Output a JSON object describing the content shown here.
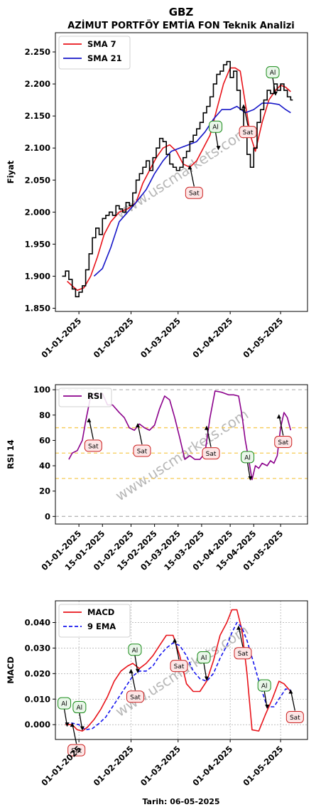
{
  "header": {
    "ticker": "GBZ",
    "subtitle": "AZİMUT PORTFÖY EMTİA FON Teknik Analizi",
    "watermark": "www.uscmarkets.com",
    "footer_date": "Tarih: 06-05-2025"
  },
  "colors": {
    "sma7": "#e8131a",
    "sma21": "#1616c8",
    "price": "#000000",
    "rsi": "#8b008b",
    "macd": "#e8131a",
    "signal": "#1616ee",
    "buy_fill": "#e9f6e9",
    "buy_stroke": "#1a8c1a",
    "sell_fill": "#fde6e6",
    "sell_stroke": "#cc2222",
    "level_band": "#f5c542",
    "level_extreme": "#b0b0b0",
    "watermark": "#a0a0a0"
  },
  "chart_data": [
    {
      "id": "price",
      "type": "line",
      "title": "AZİMUT PORTFÖY EMTİA FON Teknik Analizi",
      "ylabel": "Fiyat",
      "xlabel": "",
      "ylim": [
        1.845,
        2.28
      ],
      "xlim": [
        "2024-12-18",
        "2025-05-17"
      ],
      "yticks": [
        1.85,
        1.9,
        1.95,
        2.0,
        2.05,
        2.1,
        2.15,
        2.2,
        2.25
      ],
      "ytick_labels": [
        "1.850",
        "1.900",
        "1.950",
        "2.000",
        "2.050",
        "2.100",
        "2.150",
        "2.200",
        "2.250"
      ],
      "xticks": [
        "2025-01-01",
        "2025-02-01",
        "2025-03-01",
        "2025-04-01",
        "2025-05-01"
      ],
      "xtick_labels": [
        "01-01-2025",
        "01-02-2025",
        "01-03-2025",
        "01-04-2025",
        "01-05-2025"
      ],
      "legend": "top-left",
      "grid": false,
      "series": [
        {
          "name": "SMA 7",
          "key": "sma7",
          "x": [
            "2024-12-25",
            "2024-12-28",
            "2024-12-31",
            "2025-01-04",
            "2025-01-08",
            "2025-01-12",
            "2025-01-16",
            "2025-01-20",
            "2025-01-25",
            "2025-01-30",
            "2025-02-04",
            "2025-02-08",
            "2025-02-12",
            "2025-02-16",
            "2025-02-20",
            "2025-02-24",
            "2025-02-28",
            "2025-03-04",
            "2025-03-08",
            "2025-03-12",
            "2025-03-16",
            "2025-03-20",
            "2025-03-24",
            "2025-03-28",
            "2025-04-01",
            "2025-04-04",
            "2025-04-07",
            "2025-04-10",
            "2025-04-13",
            "2025-04-16",
            "2025-04-20",
            "2025-04-24",
            "2025-04-28",
            "2025-05-01",
            "2025-05-04",
            "2025-05-07"
          ],
          "values": [
            1.892,
            1.885,
            1.878,
            1.882,
            1.9,
            1.93,
            1.965,
            1.985,
            2.0,
            2.005,
            2.015,
            2.045,
            2.065,
            2.085,
            2.1,
            2.105,
            2.095,
            2.075,
            2.07,
            2.08,
            2.1,
            2.12,
            2.16,
            2.2,
            2.225,
            2.225,
            2.22,
            2.17,
            2.12,
            2.095,
            2.14,
            2.175,
            2.19,
            2.198,
            2.195,
            2.188
          ]
        },
        {
          "name": "SMA 21",
          "key": "sma21",
          "x": [
            "2025-01-10",
            "2025-01-15",
            "2025-01-20",
            "2025-01-25",
            "2025-01-30",
            "2025-02-04",
            "2025-02-10",
            "2025-02-15",
            "2025-02-20",
            "2025-02-25",
            "2025-03-02",
            "2025-03-07",
            "2025-03-12",
            "2025-03-17",
            "2025-03-22",
            "2025-03-27",
            "2025-04-01",
            "2025-04-05",
            "2025-04-10",
            "2025-04-15",
            "2025-04-20",
            "2025-04-25",
            "2025-04-30",
            "2025-05-04",
            "2025-05-07"
          ],
          "values": [
            1.9,
            1.912,
            1.945,
            1.985,
            2.0,
            2.015,
            2.035,
            2.06,
            2.08,
            2.095,
            2.1,
            2.105,
            2.11,
            2.125,
            2.145,
            2.16,
            2.16,
            2.165,
            2.155,
            2.16,
            2.17,
            2.17,
            2.168,
            2.16,
            2.155
          ]
        },
        {
          "name": "Fiyat",
          "key": "price",
          "x": [
            "2024-12-22",
            "2024-12-24",
            "2024-12-26",
            "2024-12-28",
            "2024-12-30",
            "2025-01-01",
            "2025-01-03",
            "2025-01-05",
            "2025-01-07",
            "2025-01-09",
            "2025-01-11",
            "2025-01-13",
            "2025-01-15",
            "2025-01-17",
            "2025-01-19",
            "2025-01-21",
            "2025-01-23",
            "2025-01-25",
            "2025-01-27",
            "2025-01-29",
            "2025-01-31",
            "2025-02-02",
            "2025-02-04",
            "2025-02-06",
            "2025-02-08",
            "2025-02-10",
            "2025-02-12",
            "2025-02-14",
            "2025-02-16",
            "2025-02-18",
            "2025-02-20",
            "2025-02-22",
            "2025-02-24",
            "2025-02-26",
            "2025-02-28",
            "2025-03-02",
            "2025-03-04",
            "2025-03-06",
            "2025-03-08",
            "2025-03-10",
            "2025-03-12",
            "2025-03-14",
            "2025-03-16",
            "2025-03-18",
            "2025-03-20",
            "2025-03-22",
            "2025-03-24",
            "2025-03-26",
            "2025-03-28",
            "2025-03-30",
            "2025-04-01",
            "2025-04-03",
            "2025-04-05",
            "2025-04-07",
            "2025-04-09",
            "2025-04-11",
            "2025-04-13",
            "2025-04-15",
            "2025-04-17",
            "2025-04-19",
            "2025-04-21",
            "2025-04-23",
            "2025-04-25",
            "2025-04-27",
            "2025-04-29",
            "2025-05-01",
            "2025-05-03",
            "2025-05-05",
            "2025-05-07"
          ],
          "values": [
            1.9,
            1.908,
            1.895,
            1.88,
            1.868,
            1.875,
            1.885,
            1.91,
            1.935,
            1.96,
            1.975,
            1.965,
            1.99,
            1.995,
            2.0,
            1.995,
            2.01,
            2.005,
            2.0,
            2.015,
            2.01,
            2.03,
            2.05,
            2.06,
            2.07,
            2.08,
            2.065,
            2.085,
            2.1,
            2.115,
            2.11,
            2.09,
            2.075,
            2.07,
            2.065,
            2.07,
            2.085,
            2.095,
            2.11,
            2.12,
            2.13,
            2.14,
            2.155,
            2.165,
            2.18,
            2.2,
            2.215,
            2.22,
            2.23,
            2.235,
            2.21,
            2.22,
            2.19,
            2.16,
            2.13,
            2.09,
            2.07,
            2.1,
            2.14,
            2.16,
            2.175,
            2.19,
            2.185,
            2.2,
            2.19,
            2.2,
            2.19,
            2.18,
            2.175
          ]
        }
      ],
      "signals": [
        {
          "label": "Sat",
          "type": "sell",
          "x": "2025-03-08",
          "y": 2.07
        },
        {
          "label": "Al",
          "type": "buy",
          "x": "2025-03-25",
          "y": 2.1
        },
        {
          "label": "Sat",
          "type": "sell",
          "x": "2025-04-09",
          "y": 2.165
        },
        {
          "label": "Al",
          "type": "buy",
          "x": "2025-04-28",
          "y": 2.185
        }
      ]
    },
    {
      "id": "rsi",
      "type": "line",
      "ylabel": "RSI 14",
      "xlabel": "",
      "ylim": [
        -6,
        104
      ],
      "xlim": [
        "2024-12-18",
        "2025-05-17"
      ],
      "yticks": [
        0,
        20,
        40,
        60,
        80,
        100
      ],
      "ytick_labels": [
        "0",
        "20",
        "40",
        "60",
        "80",
        "100"
      ],
      "xticks": [
        "2025-01-01",
        "2025-01-15",
        "2025-02-01",
        "2025-02-15",
        "2025-03-01",
        "2025-03-15",
        "2025-04-01",
        "2025-04-15",
        "2025-05-01"
      ],
      "xtick_labels": [
        "01-01-2025",
        "15-01-2025",
        "01-02-2025",
        "15-02-2025",
        "01-03-2025",
        "15-03-2025",
        "01-04-2025",
        "15-04-2025",
        "01-05-2025"
      ],
      "levels": [
        0,
        30,
        50,
        70,
        100
      ],
      "legend": "top-left",
      "grid": false,
      "series": [
        {
          "name": "RSI",
          "key": "rsi",
          "x": [
            "2024-12-26",
            "2024-12-28",
            "2024-12-31",
            "2025-01-03",
            "2025-01-05",
            "2025-01-08",
            "2025-01-10",
            "2025-01-12",
            "2025-01-15",
            "2025-01-18",
            "2025-01-21",
            "2025-01-25",
            "2025-01-28",
            "2025-01-31",
            "2025-02-03",
            "2025-02-06",
            "2025-02-09",
            "2025-02-12",
            "2025-02-15",
            "2025-02-18",
            "2025-02-21",
            "2025-02-24",
            "2025-02-27",
            "2025-03-02",
            "2025-03-05",
            "2025-03-08",
            "2025-03-11",
            "2025-03-14",
            "2025-03-17",
            "2025-03-20",
            "2025-03-23",
            "2025-03-27",
            "2025-03-31",
            "2025-04-03",
            "2025-04-06",
            "2025-04-08",
            "2025-04-10",
            "2025-04-12",
            "2025-04-14",
            "2025-04-16",
            "2025-04-18",
            "2025-04-20",
            "2025-04-23",
            "2025-04-25",
            "2025-04-27",
            "2025-04-29",
            "2025-05-01",
            "2025-05-03",
            "2025-05-05",
            "2025-05-07"
          ],
          "values": [
            45,
            50,
            52,
            60,
            75,
            95,
            97,
            96,
            97,
            88,
            88,
            82,
            78,
            70,
            68,
            73,
            70,
            68,
            72,
            85,
            95,
            92,
            78,
            62,
            45,
            48,
            45,
            45,
            50,
            78,
            99,
            98,
            96,
            96,
            95,
            80,
            60,
            45,
            29,
            40,
            38,
            42,
            40,
            44,
            42,
            48,
            70,
            82,
            78,
            68
          ]
        }
      ],
      "signals": [
        {
          "label": "Sat",
          "type": "sell",
          "x": "2025-01-07",
          "y": 76
        },
        {
          "label": "Sat",
          "type": "sell",
          "x": "2025-02-05",
          "y": 72
        },
        {
          "label": "Sat",
          "type": "sell",
          "x": "2025-03-18",
          "y": 70
        },
        {
          "label": "Al",
          "type": "buy",
          "x": "2025-04-13",
          "y": 30
        },
        {
          "label": "Sat",
          "type": "sell",
          "x": "2025-04-30",
          "y": 79
        }
      ]
    },
    {
      "id": "macd",
      "type": "line",
      "ylabel": "MACD",
      "xlabel": "Tarih: 06-05-2025",
      "ylim": [
        -0.0058,
        0.0485
      ],
      "xlim": [
        "2024-12-18",
        "2025-05-17"
      ],
      "yticks": [
        0,
        0.01,
        0.02,
        0.03,
        0.04
      ],
      "ytick_labels": [
        "0.000",
        "0.010",
        "0.020",
        "0.030",
        "0.040"
      ],
      "xticks": [
        "2025-01-01",
        "2025-02-01",
        "2025-03-01",
        "2025-04-01",
        "2025-05-01"
      ],
      "xtick_labels": [
        "01-01-2025",
        "01-02-2025",
        "01-03-2025",
        "01-04-2025",
        "01-05-2025"
      ],
      "legend": "top-left",
      "grid": true,
      "series": [
        {
          "name": "MACD",
          "key": "macd",
          "x": [
            "2024-12-24",
            "2024-12-28",
            "2024-12-31",
            "2025-01-03",
            "2025-01-06",
            "2025-01-10",
            "2025-01-14",
            "2025-01-18",
            "2025-01-22",
            "2025-01-26",
            "2025-01-30",
            "2025-02-02",
            "2025-02-06",
            "2025-02-10",
            "2025-02-14",
            "2025-02-18",
            "2025-02-22",
            "2025-02-26",
            "2025-03-02",
            "2025-03-06",
            "2025-03-10",
            "2025-03-14",
            "2025-03-18",
            "2025-03-22",
            "2025-03-26",
            "2025-03-30",
            "2025-04-02",
            "2025-04-05",
            "2025-04-08",
            "2025-04-11",
            "2025-04-14",
            "2025-04-18",
            "2025-04-22",
            "2025-04-26",
            "2025-04-30",
            "2025-05-03",
            "2025-05-07"
          ],
          "values": [
            0.0,
            0.0,
            -0.002,
            -0.0025,
            -0.001,
            0.002,
            0.006,
            0.011,
            0.017,
            0.021,
            0.023,
            0.024,
            0.022,
            0.024,
            0.027,
            0.031,
            0.035,
            0.035,
            0.027,
            0.016,
            0.013,
            0.013,
            0.017,
            0.025,
            0.035,
            0.04,
            0.045,
            0.045,
            0.037,
            0.02,
            -0.002,
            -0.0025,
            0.004,
            0.01,
            0.017,
            0.016,
            0.013
          ]
        },
        {
          "name": "9 EMA",
          "key": "signal",
          "x": [
            "2024-12-24",
            "2024-12-28",
            "2025-01-01",
            "2025-01-05",
            "2025-01-09",
            "2025-01-13",
            "2025-01-17",
            "2025-01-21",
            "2025-01-25",
            "2025-01-29",
            "2025-02-02",
            "2025-02-06",
            "2025-02-10",
            "2025-02-14",
            "2025-02-18",
            "2025-02-22",
            "2025-02-26",
            "2025-03-02",
            "2025-03-06",
            "2025-03-10",
            "2025-03-14",
            "2025-03-18",
            "2025-03-22",
            "2025-03-26",
            "2025-03-30",
            "2025-04-02",
            "2025-04-05",
            "2025-04-08",
            "2025-04-11",
            "2025-04-15",
            "2025-04-19",
            "2025-04-23",
            "2025-04-27",
            "2025-05-01",
            "2025-05-04",
            "2025-05-07"
          ],
          "values": [
            0.0006,
            0.0006,
            0.0,
            -0.002,
            -0.0015,
            0.0005,
            0.003,
            0.007,
            0.011,
            0.015,
            0.019,
            0.021,
            0.021,
            0.023,
            0.027,
            0.03,
            0.032,
            0.031,
            0.027,
            0.021,
            0.018,
            0.017,
            0.02,
            0.026,
            0.031,
            0.036,
            0.04,
            0.038,
            0.033,
            0.024,
            0.015,
            0.007,
            0.007,
            0.011,
            0.014,
            0.0135
          ]
        }
      ],
      "signals": [
        {
          "label": "Al",
          "type": "buy",
          "x": "2024-12-25",
          "y": 0.0
        },
        {
          "label": "Sat",
          "type": "sell",
          "x": "2024-12-28",
          "y": 0.0
        },
        {
          "label": "Al",
          "type": "buy",
          "x": "2025-01-03",
          "y": -0.0015
        },
        {
          "label": "Sat",
          "type": "sell",
          "x": "2025-02-01",
          "y": 0.021
        },
        {
          "label": "Al",
          "type": "buy",
          "x": "2025-02-05",
          "y": 0.021
        },
        {
          "label": "Sat",
          "type": "sell",
          "x": "2025-02-27",
          "y": 0.033
        },
        {
          "label": "Al",
          "type": "buy",
          "x": "2025-03-18",
          "y": 0.018
        },
        {
          "label": "Sat",
          "type": "sell",
          "x": "2025-04-06",
          "y": 0.038
        },
        {
          "label": "Al",
          "type": "buy",
          "x": "2025-04-23",
          "y": 0.007
        },
        {
          "label": "Sat",
          "type": "sell",
          "x": "2025-05-07",
          "y": 0.013
        }
      ]
    }
  ]
}
